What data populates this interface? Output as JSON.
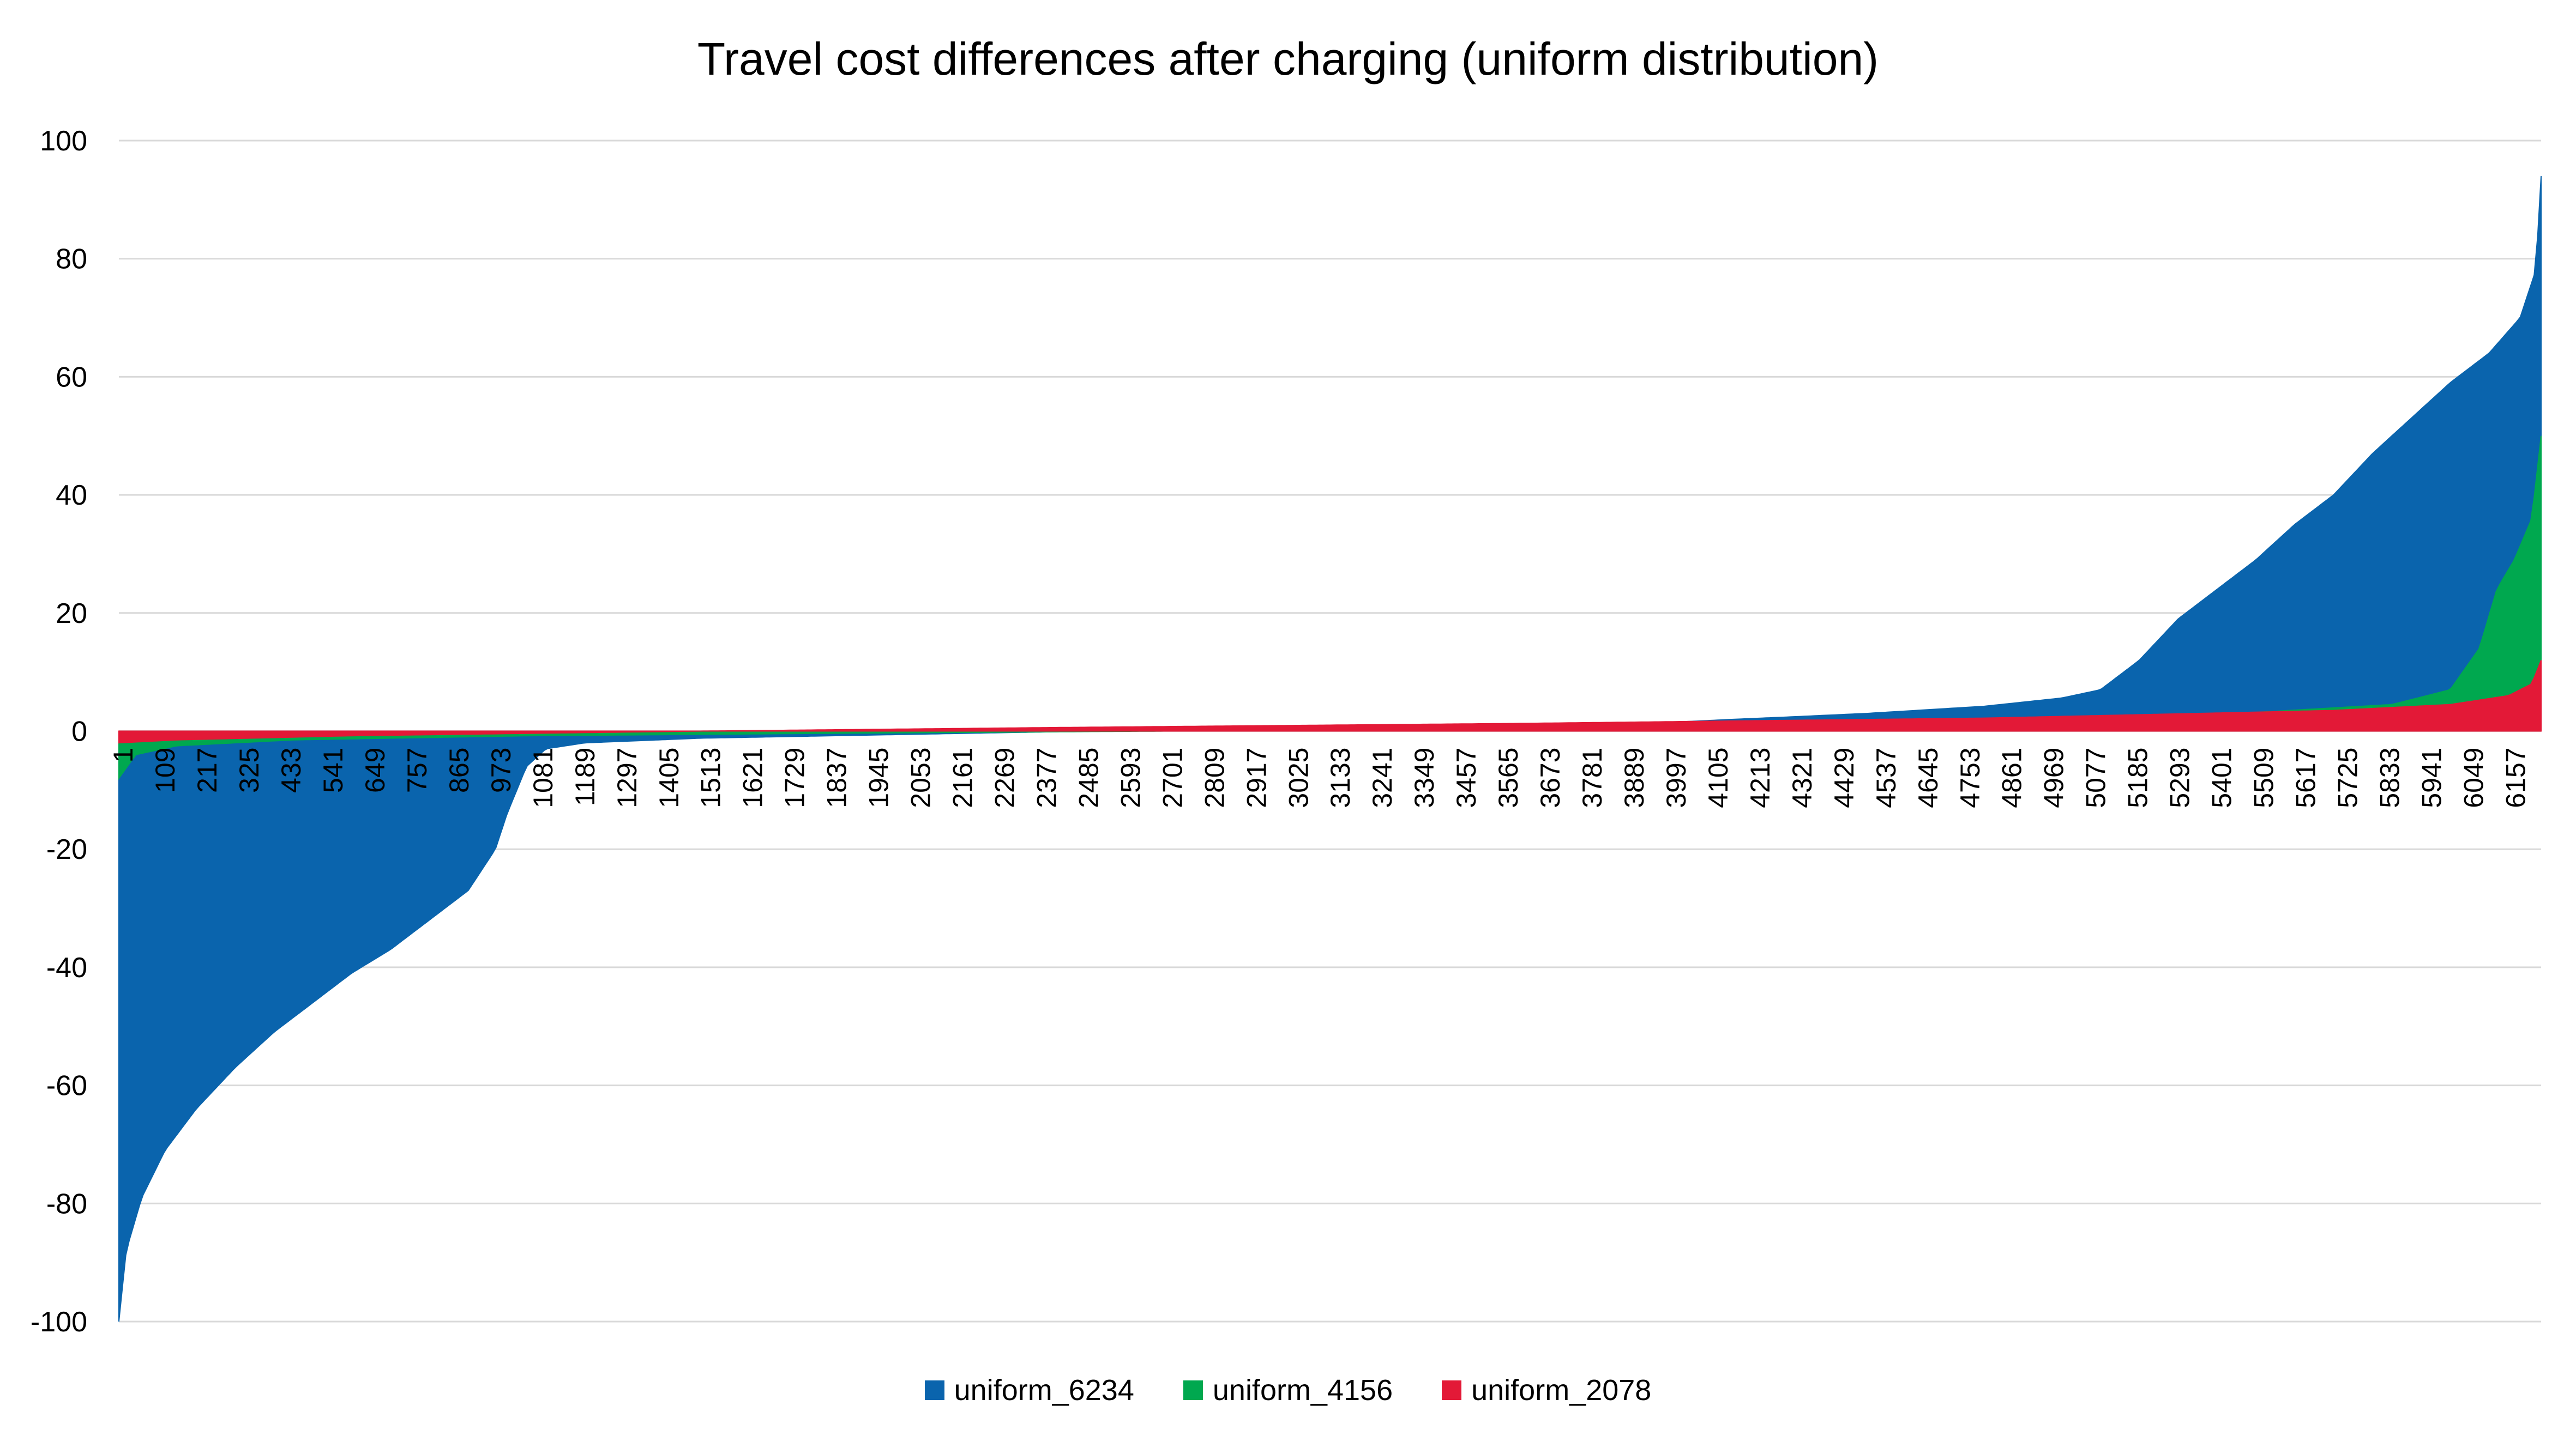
{
  "chart_data": {
    "type": "area",
    "title": "Travel cost differences after charging (uniform distribution)",
    "xlabel": "",
    "ylabel": "",
    "ylim": [
      -100,
      100
    ],
    "yticks": [
      100,
      80,
      60,
      40,
      20,
      0,
      -20,
      -40,
      -60,
      -80,
      -100
    ],
    "xticks": [
      "1",
      "109",
      "217",
      "325",
      "433",
      "541",
      "649",
      "757",
      "865",
      "973",
      "1081",
      "1189",
      "1297",
      "1405",
      "1513",
      "1621",
      "1729",
      "1837",
      "1945",
      "2053",
      "2161",
      "2269",
      "2377",
      "2485",
      "2593",
      "2701",
      "2809",
      "2917",
      "3025",
      "3133",
      "3241",
      "3349",
      "3457",
      "3565",
      "3673",
      "3781",
      "3889",
      "3997",
      "4105",
      "4213",
      "4321",
      "4429",
      "4537",
      "4645",
      "4753",
      "4861",
      "4969",
      "5077",
      "5185",
      "5293",
      "5401",
      "5509",
      "5617",
      "5725",
      "5833",
      "5941",
      "6049",
      "6157"
    ],
    "xlim": [
      1,
      6234
    ],
    "grid": true,
    "legend_position": "bottom",
    "series": [
      {
        "name": "uniform_6234",
        "color": "#0a64ad",
        "n": 6234,
        "x": [
          1,
          20,
          60,
          120,
          200,
          300,
          400,
          500,
          600,
          700,
          800,
          900,
          970,
          1000,
          1050,
          1100,
          1200,
          1500,
          2000,
          2500,
          3000,
          3500,
          4000,
          4156,
          4300,
          4500,
          4800,
          5000,
          5100,
          5200,
          5300,
          5400,
          5500,
          5600,
          5700,
          5800,
          5900,
          6000,
          6100,
          6180,
          6220,
          6234
        ],
        "y": [
          -100,
          -88,
          -79,
          -71,
          -64,
          -57,
          -51,
          -46,
          -41,
          -37,
          -32,
          -27,
          -20,
          -14,
          -6,
          -3,
          -2,
          -1.2,
          -0.6,
          0,
          0.4,
          0.8,
          1.5,
          2,
          2.4,
          3,
          4.2,
          5.6,
          7,
          12,
          19,
          24,
          29,
          35,
          40,
          47,
          53,
          59,
          64,
          70,
          78,
          94
        ]
      },
      {
        "name": "uniform_4156",
        "color": "#00a84f",
        "n": 4156,
        "x": [
          1,
          30,
          100,
          300,
          700,
          1200,
          1800,
          2200,
          2700,
          3200,
          3600,
          3900,
          4000,
          4050,
          4080,
          4110,
          4140,
          4156
        ],
        "y": [
          -8,
          -4,
          -2.5,
          -1.5,
          -0.8,
          -0.4,
          0,
          0.8,
          1.5,
          2,
          2.8,
          4.5,
          7,
          14,
          24,
          29,
          36,
          50
        ]
      },
      {
        "name": "uniform_2078",
        "color": "#e31937",
        "n": 2078,
        "x": [
          1,
          50,
          200,
          500,
          800,
          1200,
          1600,
          1900,
          2000,
          2050,
          2070,
          2078
        ],
        "y": [
          -2,
          -1.5,
          -0.8,
          0,
          0.6,
          1.3,
          2.2,
          3.5,
          4.5,
          6,
          8,
          12
        ]
      }
    ]
  }
}
